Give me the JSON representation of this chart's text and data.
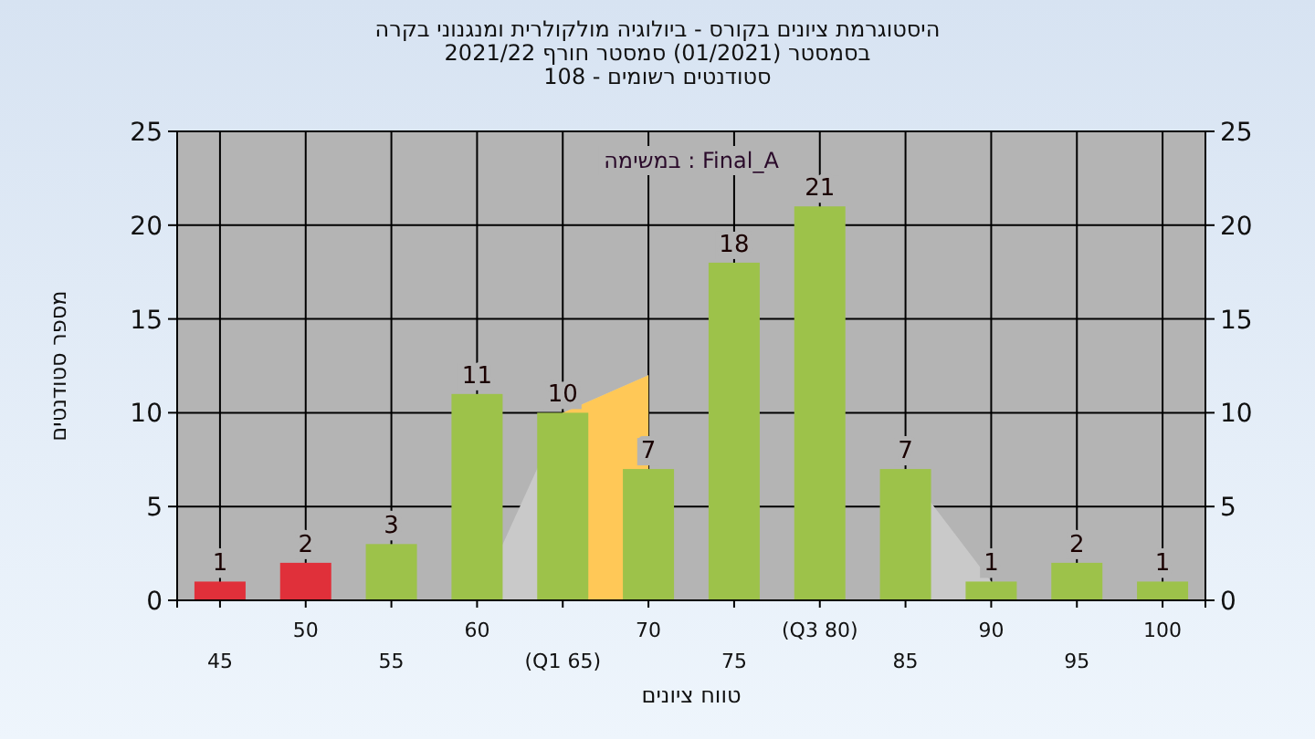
{
  "chart_data": {
    "type": "bar",
    "title": "היסטוגרמת ציונים בקורס - ביולוגיה מולקולרית ומנגנוני בקרה",
    "subtitle": "בסמסטר (01/2021) סמסטר חורף 2021/22\nסטודנטים רשומים - 108",
    "xlabel": "טווח ציונים",
    "ylabel": "מספר סטודנטים",
    "annotations": [
      "במשימה : Final_A"
    ],
    "categories": [
      "45",
      "50",
      "55",
      "60",
      "(Q1 65)",
      "70",
      "75",
      "(Q3 80)",
      "85",
      "90",
      "95",
      "100"
    ],
    "series": [
      {
        "type": "area",
        "color": "#c9c9c9",
        "values": [
          null,
          null,
          null,
          0,
          10,
          12,
          null,
          null,
          7,
          1,
          null,
          null
        ]
      },
      {
        "type": "area",
        "color": "#ffc857",
        "values": [
          null,
          null,
          null,
          null,
          10,
          12,
          null,
          null,
          null,
          null,
          null,
          null
        ]
      },
      {
        "colors": [
          "#e0303a",
          "#e0303a",
          "#9dc24a",
          "#9dc24a",
          "#9dc24a",
          "#9dc24a",
          "#9dc24a",
          "#9dc24a",
          "#9dc24a",
          "#9dc24a",
          "#9dc24a",
          "#9dc24a"
        ],
        "values": [
          1,
          2,
          3,
          11,
          10,
          7,
          18,
          21,
          7,
          1,
          2,
          1
        ],
        "value_labels": [
          "1",
          "2",
          "3",
          "11",
          "10",
          "7",
          "18",
          "21",
          "7",
          "1",
          "2",
          "1"
        ]
      }
    ],
    "ylim": [
      0,
      25
    ],
    "yticks": [
      0,
      5,
      10,
      15,
      20,
      25
    ],
    "y2lim": [
      0,
      25
    ],
    "y2ticks": [
      0,
      5,
      10,
      15,
      20,
      25
    ],
    "grid": true
  }
}
